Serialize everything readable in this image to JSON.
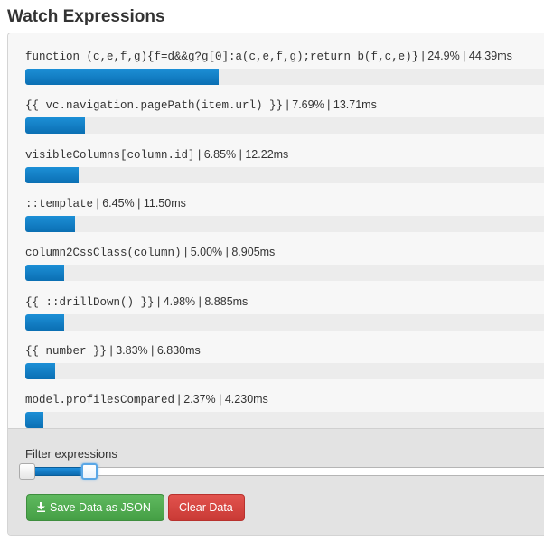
{
  "header": {
    "title": "Watch Expressions"
  },
  "expressions": [
    {
      "expression": "function (c,e,f,g){f=d&&g?g[0]:a(c,e,f,g);return b(f,c,e)}",
      "stats": " | 24.9% | 44.39ms",
      "percent": 24.9
    },
    {
      "expression": "{{ vc.navigation.pagePath(item.url) }}",
      "stats": " | 7.69% | 13.71ms",
      "percent": 7.69
    },
    {
      "expression": "visibleColumns[column.id]",
      "stats": " | 6.85% | 12.22ms",
      "percent": 6.85
    },
    {
      "expression": "::template",
      "stats": " | 6.45% | 11.50ms",
      "percent": 6.45
    },
    {
      "expression": "column2CssClass(column)",
      "stats": " | 5.00% | 8.905ms",
      "percent": 5.0
    },
    {
      "expression": "{{ ::drillDown() }}",
      "stats": " | 4.98% | 8.885ms",
      "percent": 4.98
    },
    {
      "expression": "{{ number }}",
      "stats": " | 3.83% | 6.830ms",
      "percent": 3.83
    },
    {
      "expression": "model.profilesCompared",
      "stats": " | 2.37% | 4.230ms",
      "percent": 2.37
    }
  ],
  "filter": {
    "label": "Filter expressions",
    "range_start": 0,
    "range_end": 0.12
  },
  "buttons": {
    "save_label": "Save Data as JSON",
    "save_icon": "download-icon",
    "clear_label": "Clear Data"
  },
  "colors": {
    "bar": "#1580c8",
    "save": "#4cae4c",
    "clear": "#d9534f"
  }
}
